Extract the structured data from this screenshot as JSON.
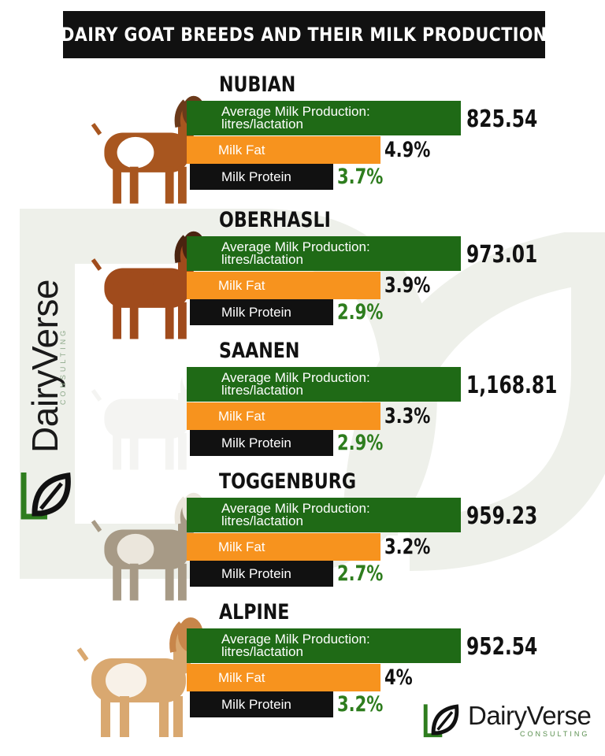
{
  "title": "DAIRY GOAT BREEDS AND THEIR MILK PRODUCTION",
  "brand": {
    "name": "DairyVerse",
    "sub": "CONSULTING"
  },
  "colors": {
    "production": "#1f6a16",
    "fat": "#f7931e",
    "protein": "#111111",
    "protein_value": "#2e7d1e"
  },
  "labels": {
    "production_line1": "Average Milk Production:",
    "production_line2": "litres/lactation",
    "fat": "Milk Fat",
    "protein": "Milk Protein"
  },
  "chart_data": {
    "type": "bar",
    "title": "DAIRY GOAT BREEDS AND THEIR MILK PRODUCTION",
    "categories": [
      "NUBIAN",
      "OBERHASLI",
      "SAANEN",
      "TOGGENBURG",
      "ALPINE"
    ],
    "series": [
      {
        "name": "Average Milk Production: litres/lactation",
        "values": [
          825.54,
          973.01,
          1168.81,
          959.23,
          952.54
        ]
      },
      {
        "name": "Milk Fat",
        "values": [
          4.9,
          3.9,
          3.3,
          3.2,
          4.0
        ]
      },
      {
        "name": "Milk Protein",
        "values": [
          3.7,
          2.9,
          2.9,
          2.7,
          3.2
        ]
      }
    ],
    "breeds": [
      {
        "name": "NUBIAN",
        "production": "825.54",
        "fat": "4.9%",
        "protein": "3.7%"
      },
      {
        "name": "OBERHASLI",
        "production": "973.01",
        "fat": "3.9%",
        "protein": "2.9%"
      },
      {
        "name": "SAANEN",
        "production": "1,168.81",
        "fat": "3.3%",
        "protein": "2.9%"
      },
      {
        "name": "TOGGENBURG",
        "production": "959.23",
        "fat": "3.2%",
        "protein": "2.7%"
      },
      {
        "name": "ALPINE",
        "production": "952.54",
        "fat": "4%",
        "protein": "3.2%"
      }
    ]
  }
}
